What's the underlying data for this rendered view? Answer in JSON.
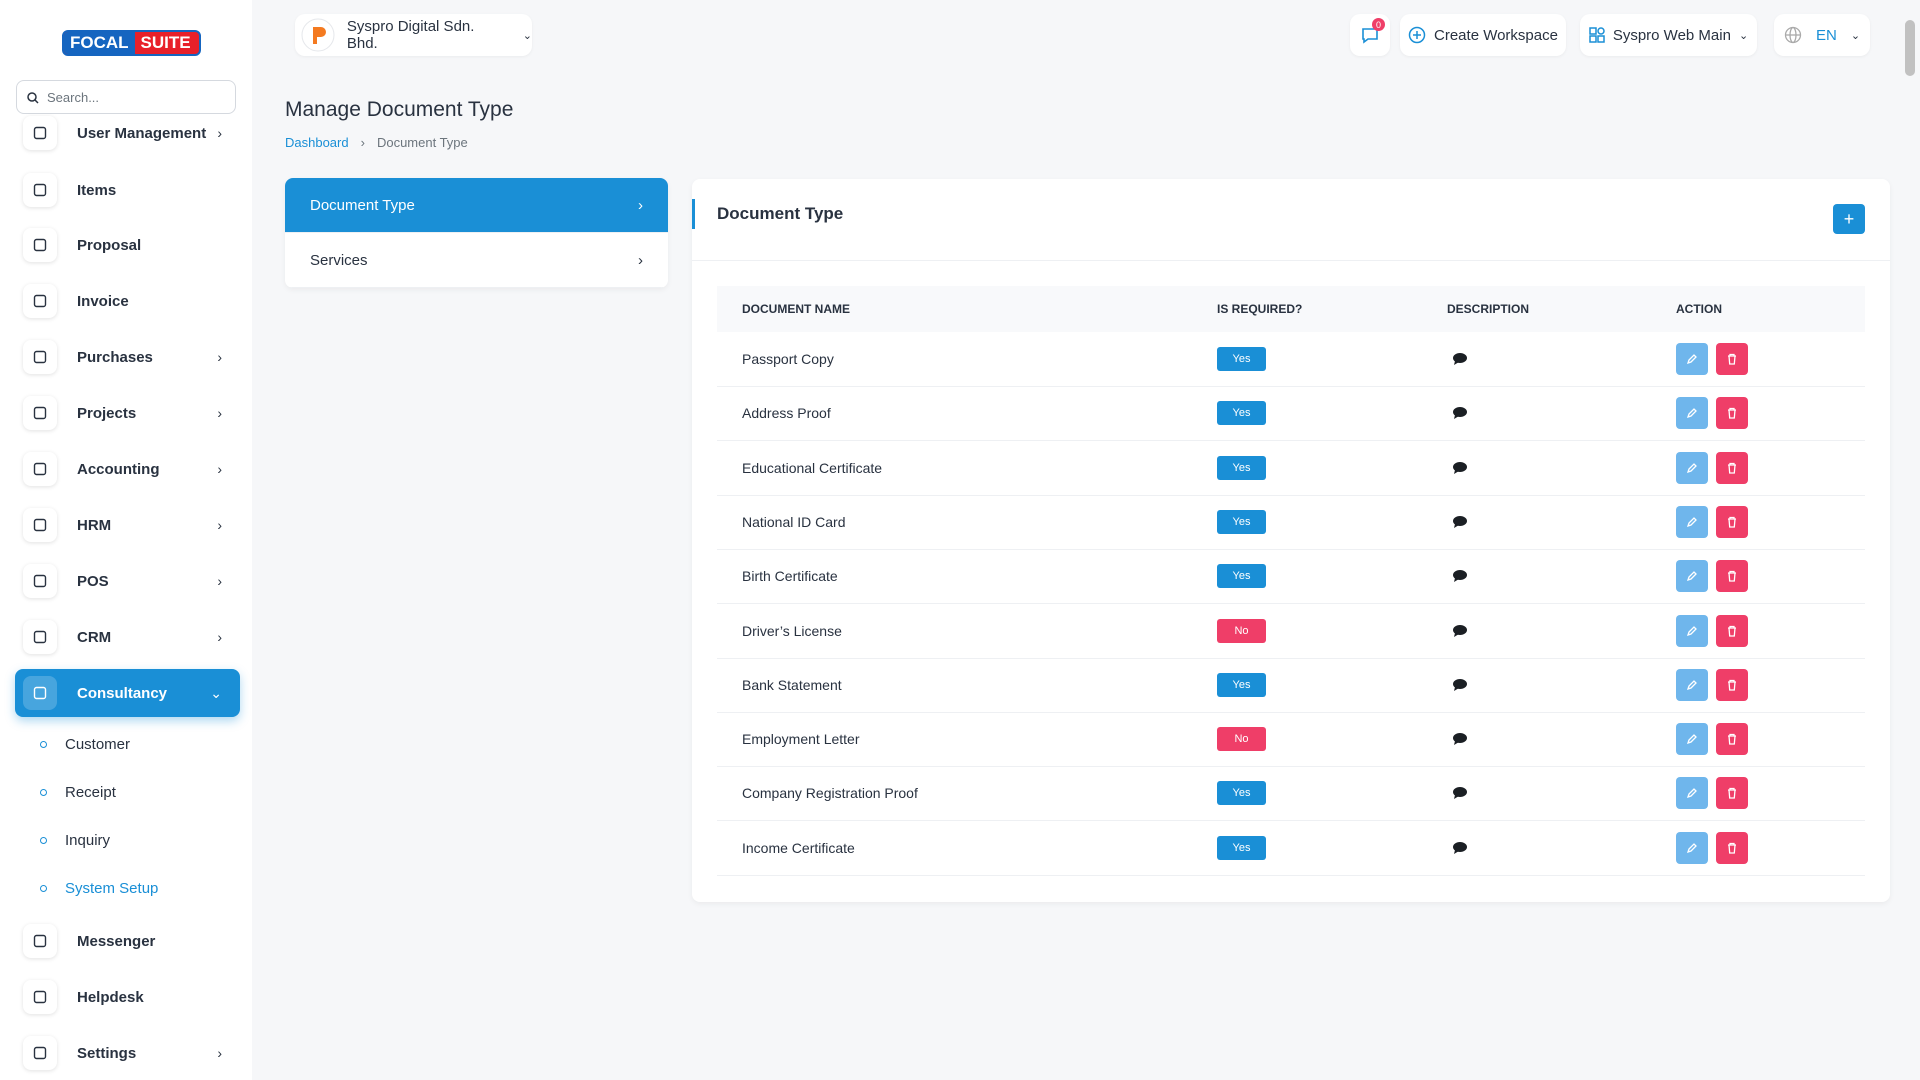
{
  "logo": {
    "left": "FOCAL",
    "right": "SUITE"
  },
  "search": {
    "placeholder": "Search..."
  },
  "sidebar": {
    "items": [
      {
        "label": "User Management",
        "chevron": true
      },
      {
        "label": "Items",
        "chevron": false
      },
      {
        "label": "Proposal",
        "chevron": false
      },
      {
        "label": "Invoice",
        "chevron": false
      },
      {
        "label": "Purchases",
        "chevron": true
      },
      {
        "label": "Projects",
        "chevron": true
      },
      {
        "label": "Accounting",
        "chevron": true
      },
      {
        "label": "HRM",
        "chevron": true
      },
      {
        "label": "POS",
        "chevron": true
      },
      {
        "label": "CRM",
        "chevron": true
      },
      {
        "label": "Consultancy",
        "chevron": true,
        "active": true
      },
      {
        "label": "Messenger",
        "chevron": false
      },
      {
        "label": "Helpdesk",
        "chevron": false
      },
      {
        "label": "Settings",
        "chevron": true
      }
    ],
    "submenu": [
      {
        "label": "Customer"
      },
      {
        "label": "Receipt"
      },
      {
        "label": "Inquiry"
      },
      {
        "label": "System Setup",
        "active": true
      }
    ]
  },
  "header": {
    "company": "Syspro Digital Sdn. Bhd.",
    "notifications": "0",
    "create_workspace": "Create Workspace",
    "workspace": "Syspro Web Main",
    "language": "EN"
  },
  "page": {
    "title": "Manage Document Type",
    "breadcrumb": [
      "Dashboard",
      "Document Type"
    ]
  },
  "settings_menu": [
    {
      "label": "Document Type",
      "active": true
    },
    {
      "label": "Services"
    }
  ],
  "card": {
    "title": "Document Type"
  },
  "table": {
    "columns": [
      "DOCUMENT NAME",
      "IS REQUIRED?",
      "DESCRIPTION",
      "ACTION"
    ],
    "rows": [
      {
        "name": "Passport Copy",
        "required": "Yes"
      },
      {
        "name": "Address Proof",
        "required": "Yes"
      },
      {
        "name": "Educational Certificate",
        "required": "Yes"
      },
      {
        "name": "National ID Card",
        "required": "Yes"
      },
      {
        "name": "Birth Certificate",
        "required": "Yes"
      },
      {
        "name": "Driver’s License",
        "required": "No"
      },
      {
        "name": "Bank Statement",
        "required": "Yes"
      },
      {
        "name": "Employment Letter",
        "required": "No"
      },
      {
        "name": "Company Registration Proof",
        "required": "Yes"
      },
      {
        "name": "Income Certificate",
        "required": "Yes"
      }
    ]
  }
}
